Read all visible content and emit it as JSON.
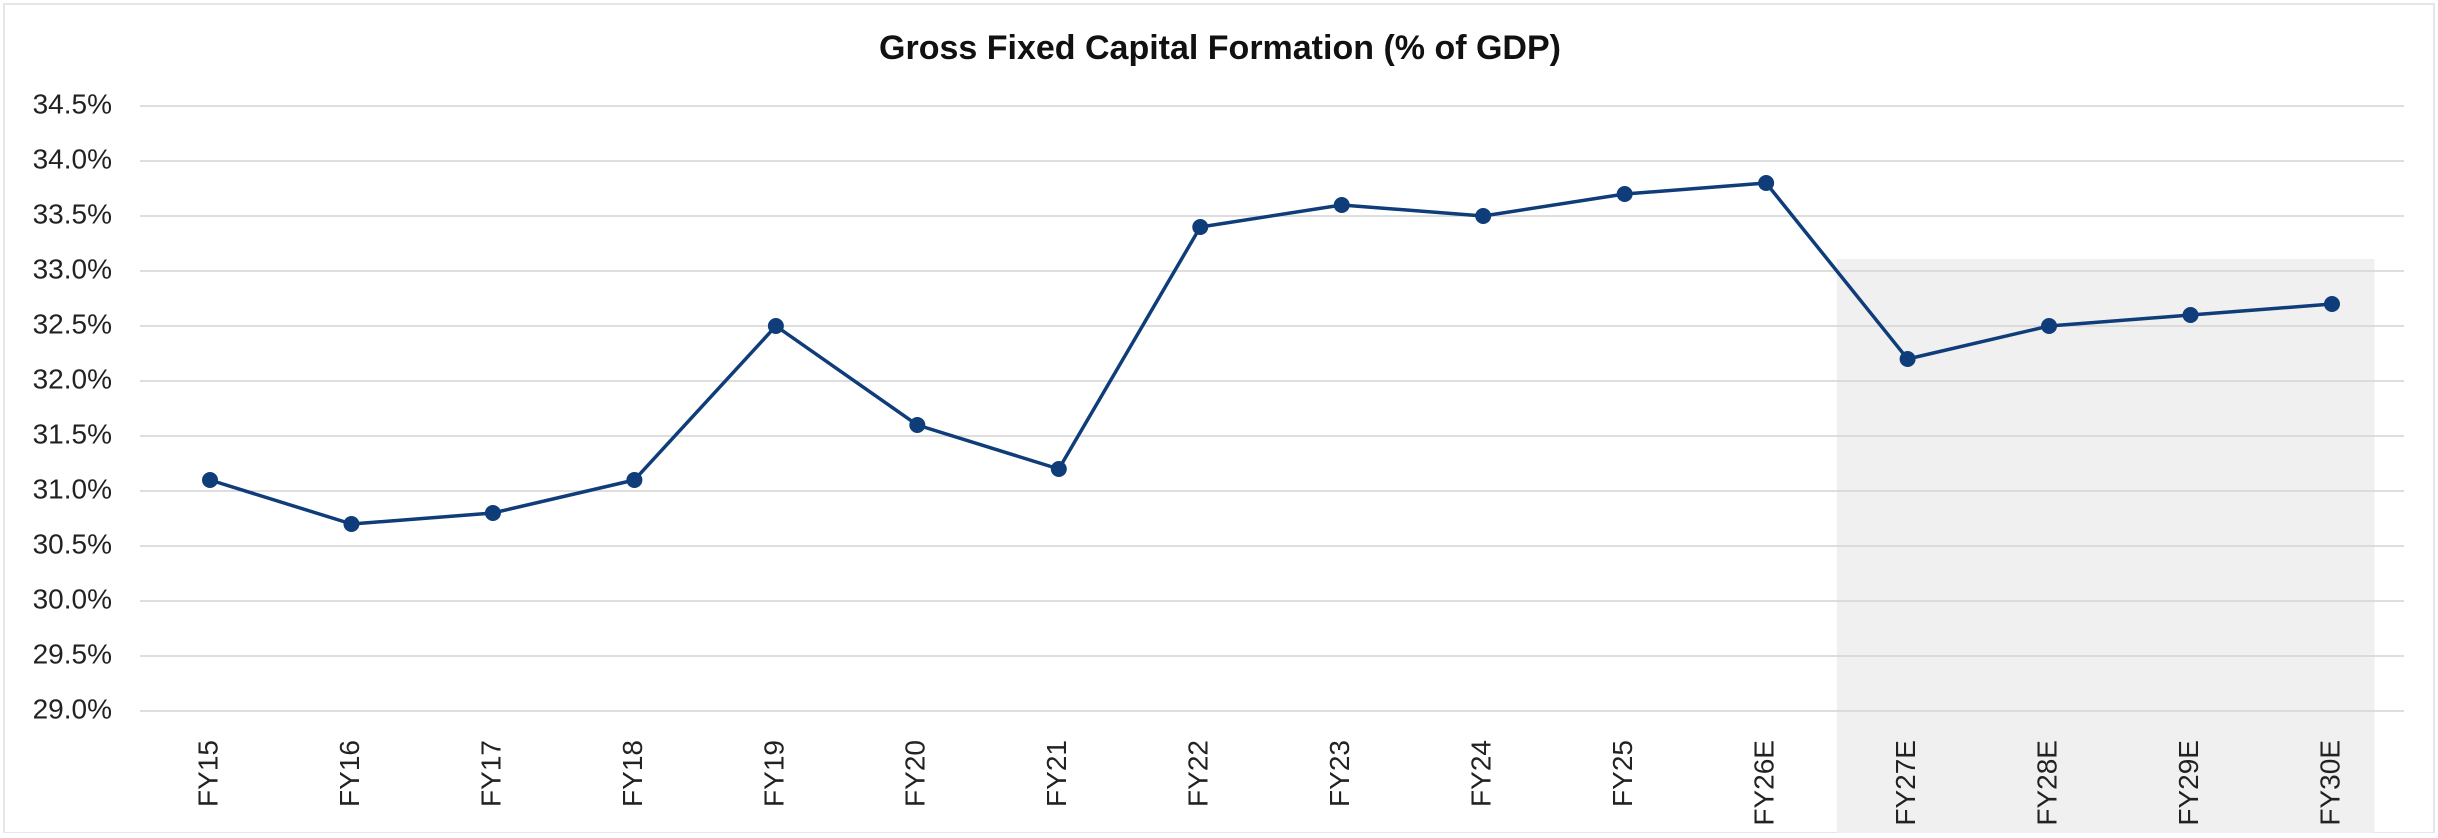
{
  "chart_data": {
    "type": "line",
    "title": "Gross Fixed Capital Formation (% of GDP)",
    "categories": [
      "FY15",
      "FY16",
      "FY17",
      "FY18",
      "FY19",
      "FY20",
      "FY21",
      "FY22",
      "FY23",
      "FY24",
      "FY25",
      "FY26E",
      "FY27E",
      "FY28E",
      "FY29E",
      "FY30E"
    ],
    "values": [
      31.1,
      30.7,
      30.8,
      31.1,
      32.5,
      31.6,
      31.2,
      33.4,
      33.6,
      33.5,
      33.7,
      33.8,
      32.2,
      32.5,
      32.6,
      32.7
    ],
    "color": "#0f3d7a",
    "ylim": [
      29.0,
      34.5
    ],
    "yticks": [
      {
        "value": 29.0,
        "label": "29.0%"
      },
      {
        "value": 29.5,
        "label": "29.5%"
      },
      {
        "value": 30.0,
        "label": "30.0%"
      },
      {
        "value": 30.5,
        "label": "30.5%"
      },
      {
        "value": 31.0,
        "label": "31.0%"
      },
      {
        "value": 31.5,
        "label": "31.5%"
      },
      {
        "value": 32.0,
        "label": "32.0%"
      },
      {
        "value": 32.5,
        "label": "32.5%"
      },
      {
        "value": 33.0,
        "label": "33.0%"
      },
      {
        "value": 33.5,
        "label": "33.5%"
      },
      {
        "value": 34.0,
        "label": "34.0%"
      },
      {
        "value": 34.5,
        "label": "34.5%"
      }
    ],
    "grid": true
  }
}
